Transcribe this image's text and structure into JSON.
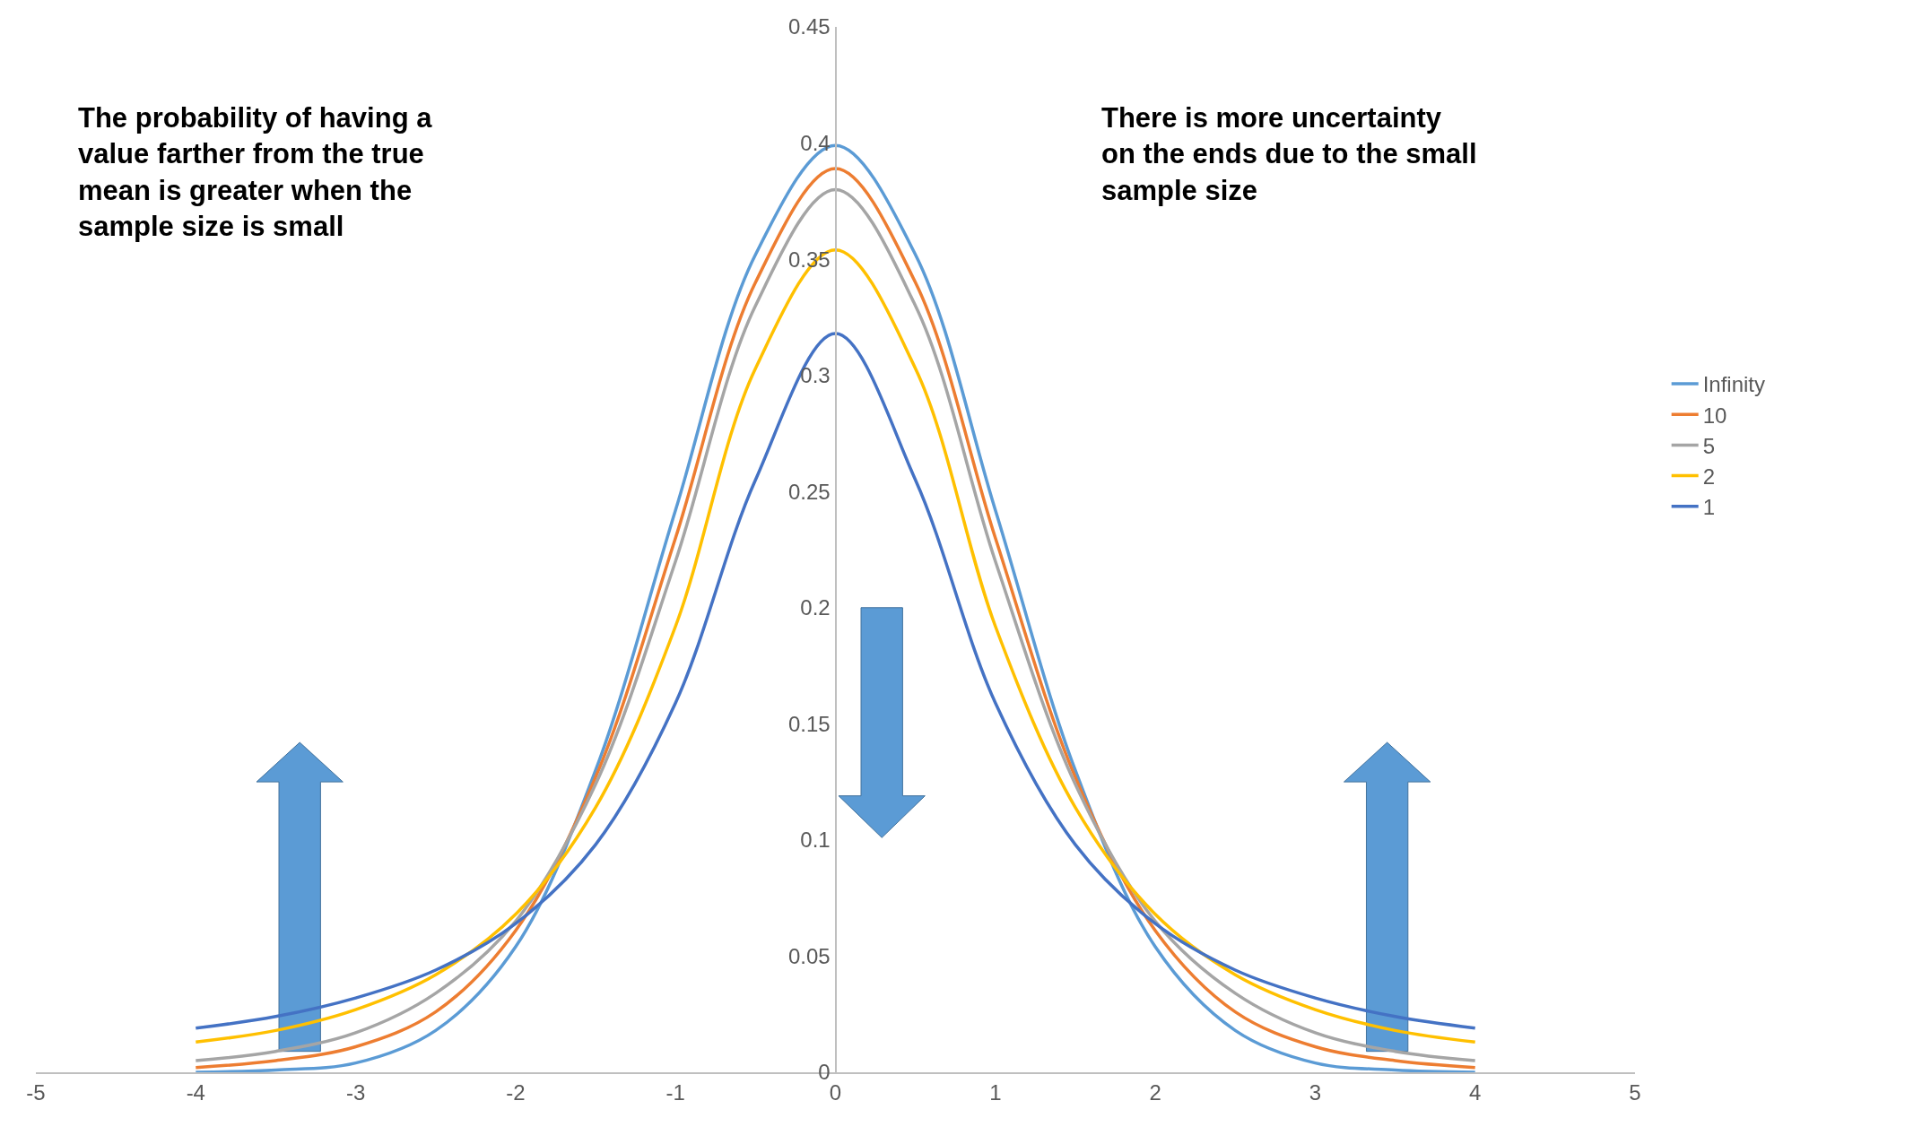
{
  "chart_data": {
    "type": "line",
    "x": [
      -4,
      -3.5,
      -3,
      -2.5,
      -2,
      -1.5,
      -1,
      -0.5,
      0,
      0.5,
      1,
      1.5,
      2,
      2.5,
      3,
      3.5,
      4
    ],
    "series": [
      {
        "name": "Infinity",
        "color": "#5b9bd5",
        "values": [
          0.0,
          0.001,
          0.004,
          0.018,
          0.054,
          0.13,
          0.242,
          0.352,
          0.399,
          0.352,
          0.242,
          0.13,
          0.054,
          0.018,
          0.004,
          0.001,
          0.0
        ]
      },
      {
        "name": "10",
        "color": "#ed7d31",
        "values": [
          0.002,
          0.005,
          0.011,
          0.026,
          0.061,
          0.127,
          0.23,
          0.34,
          0.389,
          0.34,
          0.23,
          0.127,
          0.061,
          0.026,
          0.011,
          0.005,
          0.002
        ]
      },
      {
        "name": "5",
        "color": "#a5a5a5",
        "values": [
          0.005,
          0.009,
          0.017,
          0.034,
          0.065,
          0.124,
          0.22,
          0.33,
          0.38,
          0.33,
          0.22,
          0.124,
          0.065,
          0.034,
          0.017,
          0.009,
          0.005
        ]
      },
      {
        "name": "2",
        "color": "#ffc000",
        "values": [
          0.013,
          0.018,
          0.027,
          0.042,
          0.068,
          0.114,
          0.192,
          0.303,
          0.354,
          0.303,
          0.192,
          0.114,
          0.068,
          0.042,
          0.027,
          0.018,
          0.013
        ]
      },
      {
        "name": "1",
        "color": "#4472c4",
        "values": [
          0.019,
          0.024,
          0.032,
          0.044,
          0.064,
          0.098,
          0.159,
          0.255,
          0.318,
          0.255,
          0.159,
          0.098,
          0.064,
          0.044,
          0.032,
          0.024,
          0.019
        ]
      }
    ],
    "xlim": [
      -5,
      5
    ],
    "xticks": [
      -5,
      -4,
      -3,
      -2,
      -1,
      0,
      1,
      2,
      3,
      4,
      5
    ],
    "ylim": [
      0,
      0.45
    ],
    "yticks": [
      0,
      0.05,
      0.1,
      0.15,
      0.2,
      0.25,
      0.3,
      0.35,
      0.4,
      0.45
    ],
    "grid": false,
    "legend": "right",
    "marker": "none",
    "line_style": "solid",
    "annotations": [
      "The probability of having a\nvalue farther from the true\nmean is greater when the\nsample size is small",
      "There is more uncertainty\non the ends due to the small\nsample size"
    ]
  }
}
